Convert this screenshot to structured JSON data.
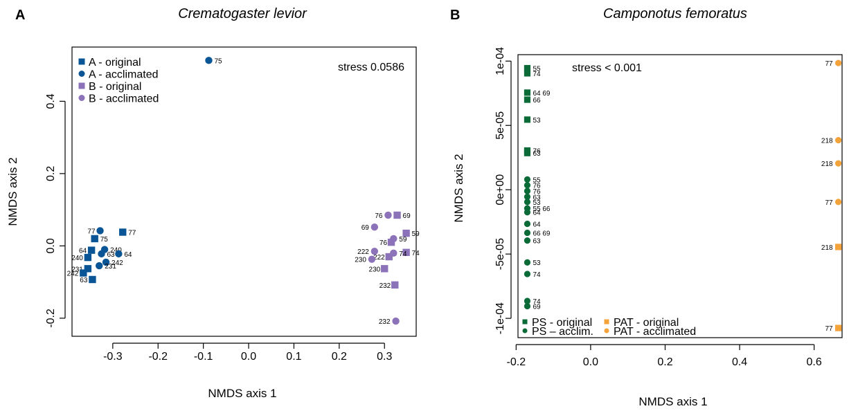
{
  "colors": {
    "blue": "#0a5596",
    "purple": "#8c72b8",
    "green": "#0b6b38",
    "orange": "#f4a23a"
  },
  "chart_data": [
    {
      "panel": "A",
      "title": "Crematogaster levior",
      "type": "scatter",
      "xlabel": "NMDS axis 1",
      "ylabel": "NMDS axis 2",
      "xlim": [
        -0.39,
        0.37
      ],
      "ylim": [
        -0.25,
        0.55
      ],
      "xticks": [
        -0.3,
        -0.2,
        -0.1,
        0.0,
        0.1,
        0.2,
        0.3
      ],
      "xtick_labels": [
        "-0.3",
        "-0.2",
        "-0.1",
        "0.0",
        "0.1",
        "0.2",
        "0.3"
      ],
      "yticks": [
        -0.2,
        0.0,
        0.2,
        0.4
      ],
      "ytick_labels": [
        "-0.2",
        "0.0",
        "0.2",
        "0.4"
      ],
      "stress": "stress 0.0586",
      "legend_position": "top-left",
      "series": [
        {
          "name": "A - original",
          "color": "blue",
          "marker": "square",
          "points": [
            {
              "x": -0.278,
              "y": 0.038,
              "label": "77"
            },
            {
              "x": -0.34,
              "y": 0.02,
              "label": "75"
            },
            {
              "x": -0.347,
              "y": -0.012,
              "label": "64"
            },
            {
              "x": -0.355,
              "y": -0.032,
              "label": "240"
            },
            {
              "x": -0.355,
              "y": -0.063,
              "label": "231"
            },
            {
              "x": -0.365,
              "y": -0.075,
              "label": "242"
            },
            {
              "x": -0.345,
              "y": -0.093,
              "label": "63"
            }
          ]
        },
        {
          "name": "A - acclimated",
          "color": "blue",
          "marker": "circle",
          "points": [
            {
              "x": -0.088,
              "y": 0.513,
              "label": "75"
            },
            {
              "x": -0.328,
              "y": 0.042,
              "label": "77"
            },
            {
              "x": -0.318,
              "y": -0.01,
              "label": "240"
            },
            {
              "x": -0.325,
              "y": -0.022,
              "label": "63"
            },
            {
              "x": -0.287,
              "y": -0.022,
              "label": "64"
            },
            {
              "x": -0.315,
              "y": -0.045,
              "label": "242"
            },
            {
              "x": -0.33,
              "y": -0.055,
              "label": "231"
            }
          ]
        },
        {
          "name": "B - original",
          "color": "purple",
          "marker": "square",
          "points": [
            {
              "x": 0.328,
              "y": 0.085,
              "label": "69"
            },
            {
              "x": 0.348,
              "y": 0.035,
              "label": "59"
            },
            {
              "x": 0.315,
              "y": 0.01,
              "label": "76"
            },
            {
              "x": 0.348,
              "y": -0.018,
              "label": "74"
            },
            {
              "x": 0.31,
              "y": -0.03,
              "label": "222"
            },
            {
              "x": 0.3,
              "y": -0.063,
              "label": "230"
            },
            {
              "x": 0.323,
              "y": -0.108,
              "label": "232"
            }
          ]
        },
        {
          "name": "B - acclimated",
          "color": "purple",
          "marker": "circle",
          "points": [
            {
              "x": 0.308,
              "y": 0.085,
              "label": "76"
            },
            {
              "x": 0.278,
              "y": 0.052,
              "label": "69"
            },
            {
              "x": 0.32,
              "y": 0.02,
              "label": "59"
            },
            {
              "x": 0.278,
              "y": -0.015,
              "label": "222"
            },
            {
              "x": 0.32,
              "y": -0.02,
              "label": "74"
            },
            {
              "x": 0.272,
              "y": -0.037,
              "label": "230"
            },
            {
              "x": 0.325,
              "y": -0.208,
              "label": "232"
            }
          ]
        }
      ]
    },
    {
      "panel": "B",
      "title": "Camponotus femoratus",
      "type": "scatter",
      "xlabel": "NMDS axis 1",
      "ylabel": "NMDS axis 2",
      "xlim": [
        -0.195,
        0.675
      ],
      "ylim": [
        -0.000115,
        0.000105
      ],
      "xticks": [
        -0.2,
        0.0,
        0.2,
        0.4,
        0.6
      ],
      "xtick_labels": [
        "-0.2",
        "0.0",
        "0.2",
        "0.4",
        "0.6"
      ],
      "yticks": [
        0.0001,
        5e-05,
        0.0,
        -5e-05,
        -0.0001
      ],
      "ytick_labels": [
        "1e-04",
        "5e-05",
        "0e+00",
        "-5e-05",
        "-1e-04"
      ],
      "stress": "stress < 0.001",
      "legend_position": "bottom",
      "series": [
        {
          "name": "PS - original",
          "color": "green",
          "marker": "square",
          "points": [
            {
              "x": -0.17,
              "y": 9.45e-05,
              "label": "55"
            },
            {
              "x": -0.17,
              "y": 9.05e-05,
              "label": "74"
            },
            {
              "x": -0.17,
              "y": 7.55e-05,
              "label": "64 69"
            },
            {
              "x": -0.17,
              "y": 7e-05,
              "label": "66"
            },
            {
              "x": -0.17,
              "y": 5.45e-05,
              "label": "53"
            },
            {
              "x": -0.17,
              "y": 3.05e-05,
              "label": "76"
            },
            {
              "x": -0.17,
              "y": 2.85e-05,
              "label": "63"
            }
          ]
        },
        {
          "name": "PS – acclim.",
          "color": "green",
          "marker": "circle",
          "points": [
            {
              "x": -0.17,
              "y": 8e-06,
              "label": "55"
            },
            {
              "x": -0.17,
              "y": 3.5e-06,
              "label": "76"
            },
            {
              "x": -0.17,
              "y": -1e-06,
              "label": "76"
            },
            {
              "x": -0.17,
              "y": -5.5e-06,
              "label": "63"
            },
            {
              "x": -0.17,
              "y": -9.5e-06,
              "label": "53"
            },
            {
              "x": -0.17,
              "y": -1.45e-05,
              "label": "55 66"
            },
            {
              "x": -0.17,
              "y": -1.75e-05,
              "label": "64"
            },
            {
              "x": -0.17,
              "y": -2.65e-05,
              "label": "64"
            },
            {
              "x": -0.17,
              "y": -3.35e-05,
              "label": "66 69"
            },
            {
              "x": -0.17,
              "y": -3.95e-05,
              "label": "63"
            },
            {
              "x": -0.17,
              "y": -5.65e-05,
              "label": "53"
            },
            {
              "x": -0.17,
              "y": -6.55e-05,
              "label": "74"
            },
            {
              "x": -0.17,
              "y": -8.65e-05,
              "label": "74"
            },
            {
              "x": -0.17,
              "y": -9.05e-05,
              "label": "69"
            }
          ]
        },
        {
          "name": "PAT - original",
          "color": "orange",
          "marker": "square",
          "points": [
            {
              "x": 0.665,
              "y": -4.45e-05,
              "label": "218"
            },
            {
              "x": 0.665,
              "y": -0.0001075,
              "label": "77"
            }
          ]
        },
        {
          "name": "PAT - acclimated",
          "color": "orange",
          "marker": "circle",
          "points": [
            {
              "x": 0.665,
              "y": 9.85e-05,
              "label": "77"
            },
            {
              "x": 0.665,
              "y": 3.85e-05,
              "label": "218"
            },
            {
              "x": 0.665,
              "y": 2.05e-05,
              "label": "218"
            },
            {
              "x": 0.665,
              "y": -9.5e-06,
              "label": "77"
            }
          ]
        }
      ]
    }
  ]
}
